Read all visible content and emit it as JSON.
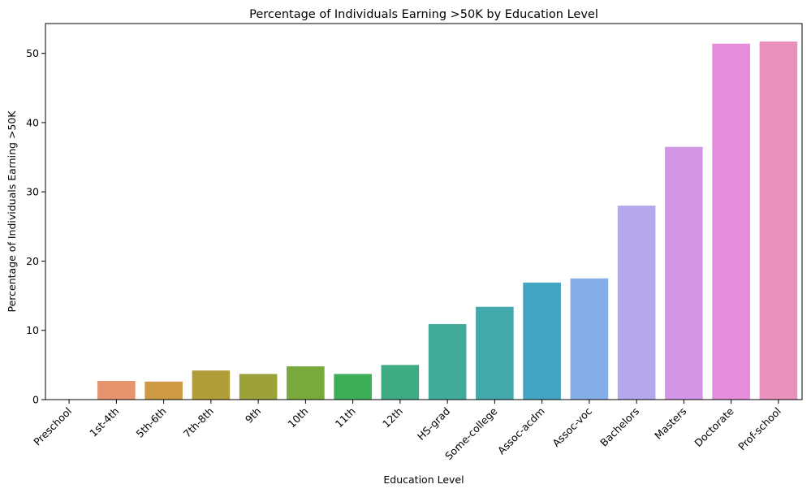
{
  "chart_data": {
    "type": "bar",
    "title": "Percentage of Individuals Earning >50K by Education Level",
    "xlabel": "Education Level",
    "ylabel": "Percentage of Individuals Earning >50K",
    "ylim": [
      0,
      54.3
    ],
    "yticks": [
      0,
      10,
      20,
      30,
      40,
      50
    ],
    "grid": false,
    "categories": [
      "Preschool",
      "1st-4th",
      "5th-6th",
      "7th-8th",
      "9th",
      "10th",
      "11th",
      "12th",
      "HS-grad",
      "Some-college",
      "Assoc-acdm",
      "Assoc-voc",
      "Bachelors",
      "Masters",
      "Doctorate",
      "Prof-school"
    ],
    "values": [
      0.0,
      2.7,
      2.6,
      4.2,
      3.7,
      4.8,
      3.7,
      5.0,
      10.9,
      13.4,
      16.9,
      17.5,
      28.0,
      36.5,
      51.4,
      51.7
    ],
    "colors": [
      "#ea96a3",
      "#e5946e",
      "#cd9a43",
      "#b19e39",
      "#9ca13a",
      "#79a83b",
      "#3dae57",
      "#3eab83",
      "#41ab9a",
      "#42a8ab",
      "#43a4c1",
      "#86aee6",
      "#b6a6ec",
      "#d396e6",
      "#e58cda",
      "#e791bc"
    ]
  }
}
